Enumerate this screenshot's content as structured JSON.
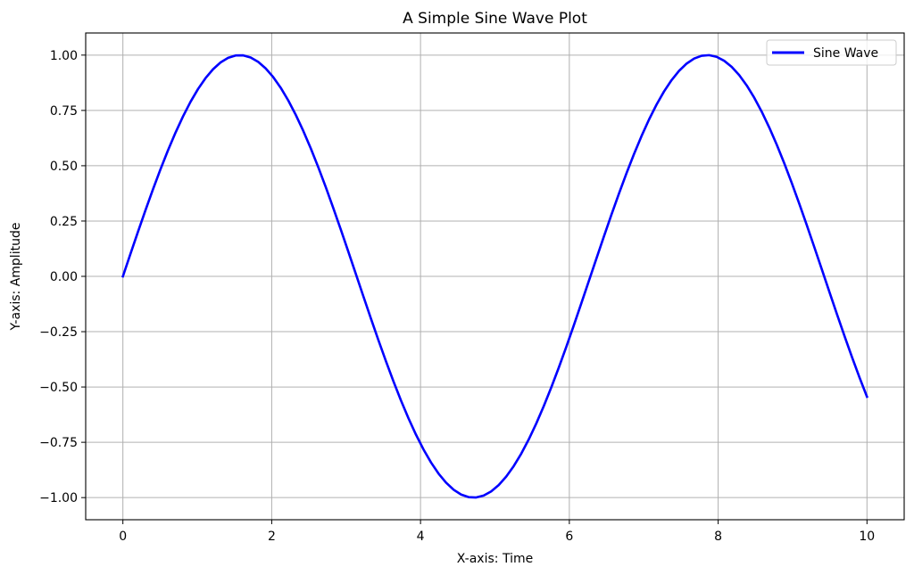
{
  "chart_data": {
    "type": "line",
    "title": "A Simple Sine Wave Plot",
    "xlabel": "X-axis: Time",
    "ylabel": "Y-axis: Amplitude",
    "xlim": [
      -0.5,
      10.5
    ],
    "ylim": [
      -1.1,
      1.1
    ],
    "xticks": [
      0,
      2,
      4,
      6,
      8,
      10
    ],
    "xtick_labels": [
      "0",
      "2",
      "4",
      "6",
      "8",
      "10"
    ],
    "yticks": [
      -1.0,
      -0.75,
      -0.5,
      -0.25,
      0.0,
      0.25,
      0.5,
      0.75,
      1.0
    ],
    "ytick_labels": [
      "−1.00",
      "−0.75",
      "−0.50",
      "−0.25",
      "0.00",
      "0.25",
      "0.50",
      "0.75",
      "1.00"
    ],
    "grid": true,
    "legend_position": "top-right",
    "series": [
      {
        "name": "Sine Wave",
        "color": "#0000ff",
        "function": "sin(x)",
        "x_range": [
          0,
          10
        ],
        "samples": 100
      }
    ]
  }
}
